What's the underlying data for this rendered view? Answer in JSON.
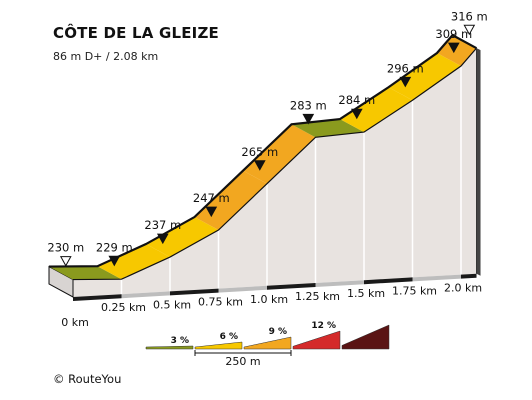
{
  "header": {
    "title": "CÔTE DE LA GLEIZE",
    "stats": "86 m D+ / 2.08 km"
  },
  "footer": {
    "copyright": "© RouteYou"
  },
  "chart_data": {
    "type": "area",
    "title": "CÔTE DE LA GLEIZE",
    "subtitle": "86 m D+ / 2.08 km",
    "x_unit": "km",
    "x_tick_labels": [
      "0 km",
      "0.25 km",
      "0.5 km",
      "0.75 km",
      "1.0 km",
      "1.25 km",
      "1.5 km",
      "1.75 km",
      "2.0 km"
    ],
    "x_ticks": [
      0,
      0.25,
      0.5,
      0.75,
      1.0,
      1.25,
      1.5,
      1.75,
      2.0
    ],
    "profile": [
      {
        "x": 0.0,
        "y": 230
      },
      {
        "x": 0.25,
        "y": 229
      },
      {
        "x": 0.5,
        "y": 237
      },
      {
        "x": 0.75,
        "y": 247
      },
      {
        "x": 1.0,
        "y": 265
      },
      {
        "x": 1.25,
        "y": 283
      },
      {
        "x": 1.5,
        "y": 284
      },
      {
        "x": 1.75,
        "y": 296
      },
      {
        "x": 2.0,
        "y": 309
      },
      {
        "x": 2.08,
        "y": 316
      }
    ],
    "segment_colors": [
      "#8a9a1e",
      "#f7c800",
      "#f7c800",
      "#f2a720",
      "#f2a720",
      "#8a9a1e",
      "#f7c800",
      "#f7c800",
      "#f2a720"
    ],
    "markers": [
      {
        "label": "230 m",
        "x": 0.0,
        "style": "open"
      },
      {
        "label": "229 m",
        "x": 0.25,
        "style": "filled"
      },
      {
        "label": "237 m",
        "x": 0.5,
        "style": "filled"
      },
      {
        "label": "247 m",
        "x": 0.75,
        "style": "filled"
      },
      {
        "label": "265 m",
        "x": 1.0,
        "style": "filled"
      },
      {
        "label": "283 m",
        "x": 1.25,
        "style": "filled"
      },
      {
        "label": "284 m",
        "x": 1.5,
        "style": "filled"
      },
      {
        "label": "296 m",
        "x": 1.75,
        "style": "filled"
      },
      {
        "label": "309 m",
        "x": 2.0,
        "style": "filled"
      },
      {
        "label": "316 m",
        "x": 2.08,
        "style": "open"
      }
    ],
    "legend": {
      "items": [
        {
          "label": "3 %",
          "color": "#8a9a1e"
        },
        {
          "label": "6 %",
          "color": "#f7c800"
        },
        {
          "label": "9 %",
          "color": "#f2a720"
        },
        {
          "label": "12 %",
          "color": "#d42a2a"
        },
        {
          "label": "",
          "color": "#5a1414"
        }
      ],
      "scale_label": "250 m"
    },
    "colors": {
      "wall": "#e8e3e0",
      "wall_grid": "#ffffff",
      "baseline_band": "#1a1a1a",
      "outline": "#111111"
    }
  }
}
